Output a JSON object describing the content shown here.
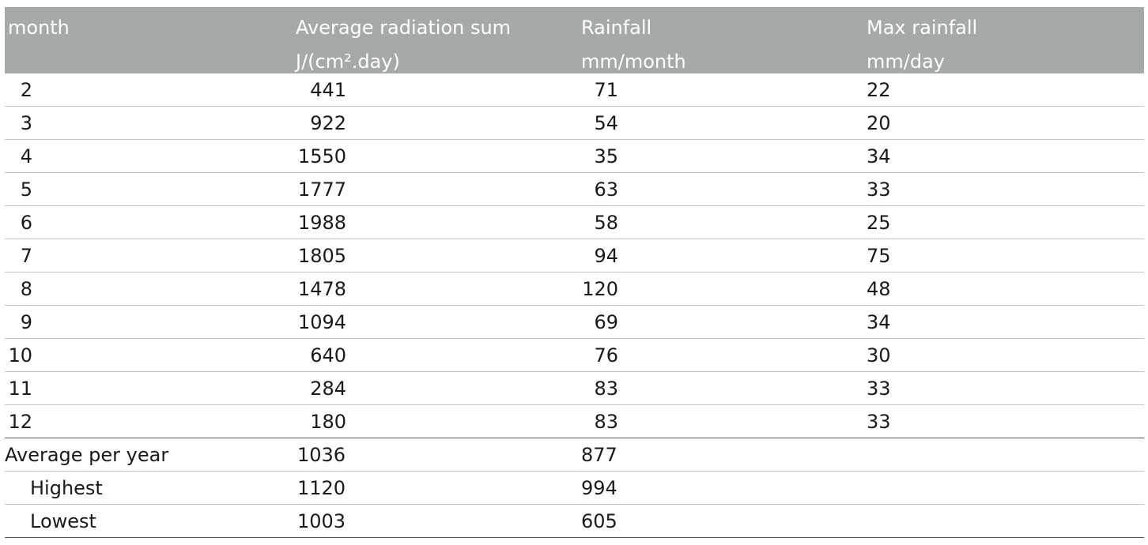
{
  "table": {
    "headers": [
      {
        "line1": "month",
        "line2": ""
      },
      {
        "line1": "Average radiation sum",
        "line2": "J/(cm².day)"
      },
      {
        "line1": "Rainfall",
        "line2": "mm/month"
      },
      {
        "line1": "Max rainfall",
        "line2": "mm/day"
      }
    ],
    "rows": [
      {
        "month": "2",
        "radiation": "441",
        "rainfall": "71",
        "max": "22"
      },
      {
        "month": "3",
        "radiation": "922",
        "rainfall": "54",
        "max": "20"
      },
      {
        "month": "4",
        "radiation": "1550",
        "rainfall": "35",
        "max": "34"
      },
      {
        "month": "5",
        "radiation": "1777",
        "rainfall": "63",
        "max": "33"
      },
      {
        "month": "6",
        "radiation": "1988",
        "rainfall": "58",
        "max": "25"
      },
      {
        "month": "7",
        "radiation": "1805",
        "rainfall": "94",
        "max": "75"
      },
      {
        "month": "8",
        "radiation": "1478",
        "rainfall": "120",
        "max": "48"
      },
      {
        "month": "9",
        "radiation": "1094",
        "rainfall": "69",
        "max": "34"
      },
      {
        "month": "10",
        "radiation": "640",
        "rainfall": "76",
        "max": "30"
      },
      {
        "month": "11",
        "radiation": "284",
        "rainfall": "83",
        "max": "33"
      },
      {
        "month": "12",
        "radiation": "180",
        "rainfall": "83",
        "max": "33"
      }
    ],
    "summary": [
      {
        "label": "Average per year",
        "radiation": "1036",
        "rainfall": "877"
      },
      {
        "label": "Highest",
        "radiation": "1120",
        "rainfall": "994"
      },
      {
        "label": "Lowest",
        "radiation": "1003",
        "rainfall": "605"
      }
    ]
  }
}
